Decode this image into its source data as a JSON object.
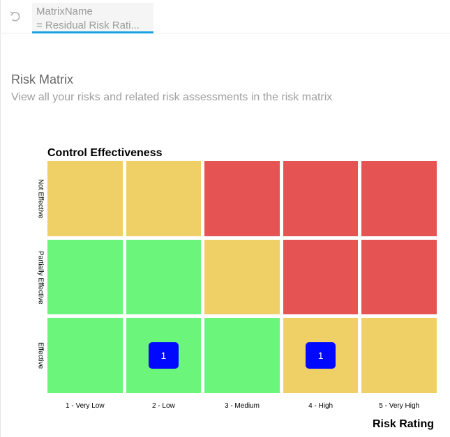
{
  "formula": {
    "line1": "MatrixName",
    "line2": "= Residual Risk Rati..."
  },
  "header": {
    "title": "Risk Matrix",
    "subtitle": "View all your risks and related risk assessments in the risk matrix"
  },
  "colors": {
    "red": "#e55353",
    "yellow": "#efd067",
    "green": "#6bf57b",
    "badge": "#0008ff",
    "formula_underline": "#1aa3e0"
  },
  "matrix": {
    "y_title": "Control Effectiveness",
    "x_title": "Risk Rating",
    "rows": [
      {
        "label": "Not Effective",
        "cells": [
          {
            "color": "yellow",
            "count": ""
          },
          {
            "color": "yellow",
            "count": ""
          },
          {
            "color": "red",
            "count": ""
          },
          {
            "color": "red",
            "count": ""
          },
          {
            "color": "red",
            "count": ""
          }
        ]
      },
      {
        "label": "Partially Effective",
        "cells": [
          {
            "color": "green",
            "count": ""
          },
          {
            "color": "green",
            "count": ""
          },
          {
            "color": "yellow",
            "count": ""
          },
          {
            "color": "red",
            "count": ""
          },
          {
            "color": "red",
            "count": ""
          }
        ]
      },
      {
        "label": "Effective",
        "cells": [
          {
            "color": "green",
            "count": ""
          },
          {
            "color": "green",
            "count": "1"
          },
          {
            "color": "green",
            "count": ""
          },
          {
            "color": "yellow",
            "count": "1"
          },
          {
            "color": "yellow",
            "count": ""
          }
        ]
      }
    ],
    "columns": [
      "1 - Very Low",
      "2 - Low",
      "3 - Medium",
      "4 - High",
      "5 - Very High"
    ]
  }
}
